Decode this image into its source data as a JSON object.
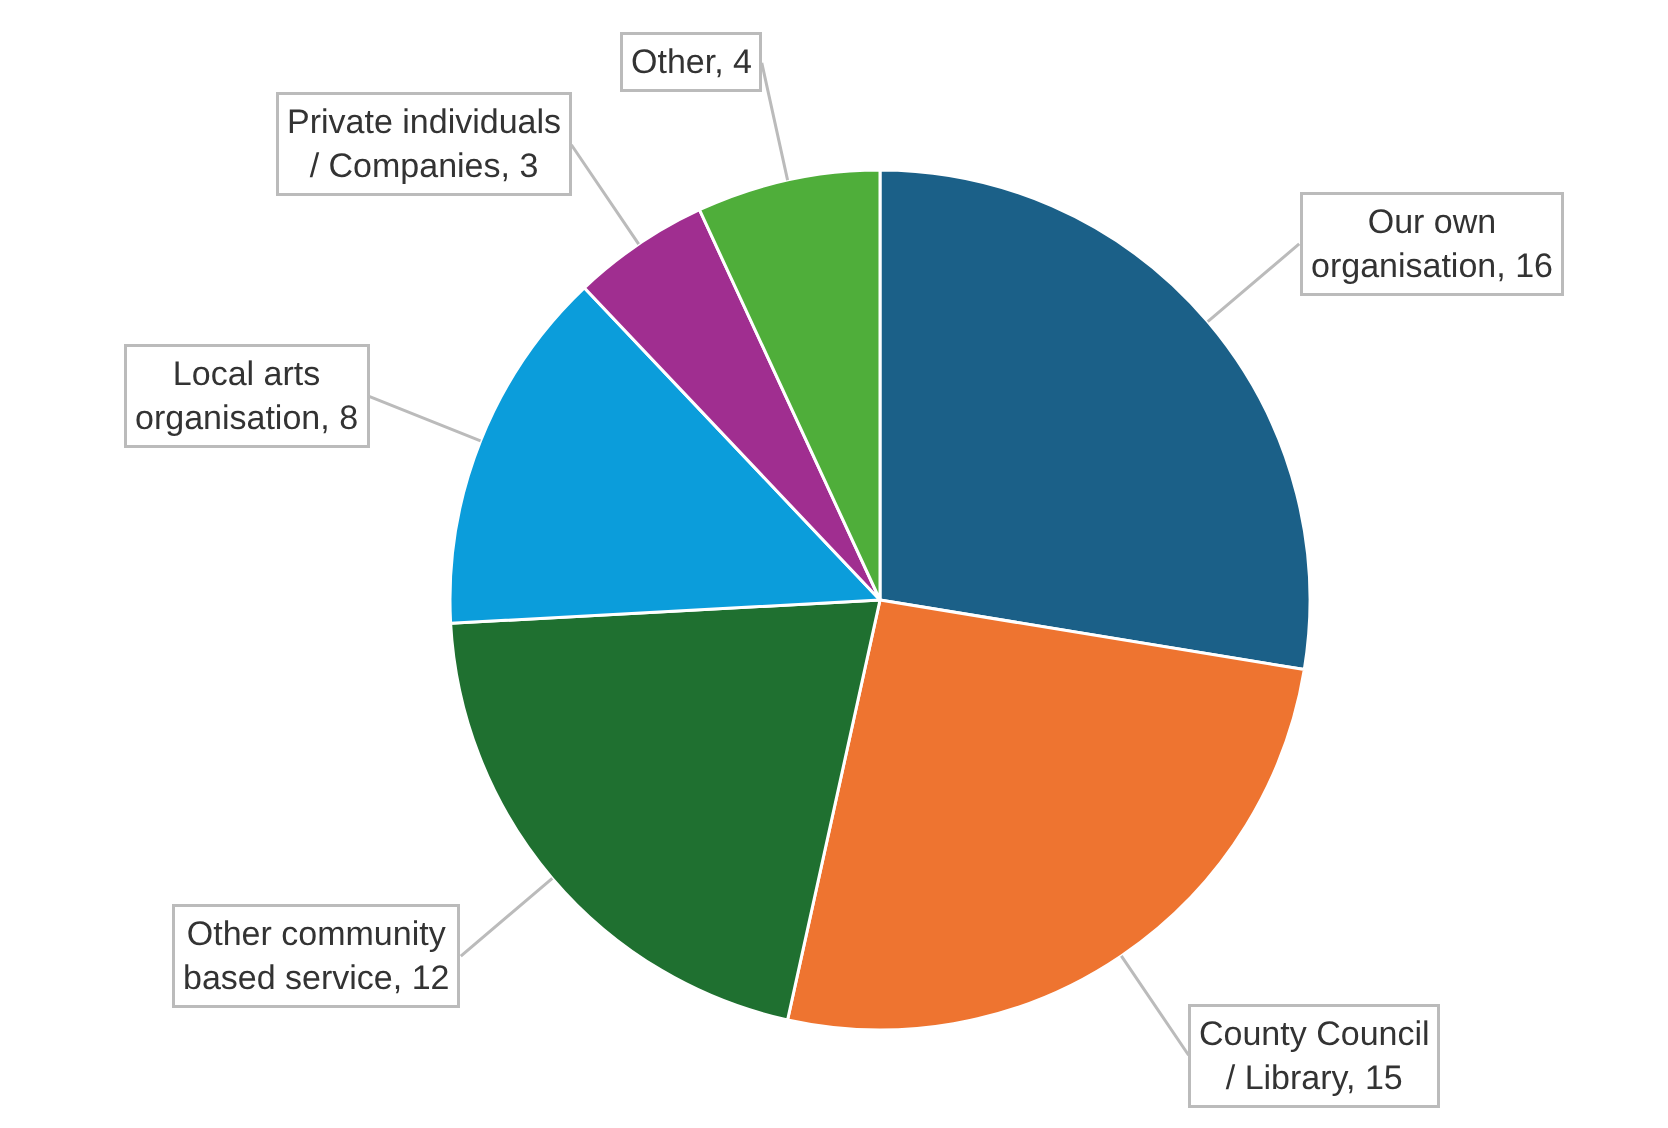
{
  "chart_data": {
    "type": "pie",
    "categories": [
      "Our own organisation, 16",
      "County Council / Library, 15",
      "Other community based service, 12",
      "Local arts organisation, 8",
      "Private individuals / Companies, 3",
      "Other, 4"
    ],
    "values": [
      16,
      15,
      12,
      8,
      3,
      4
    ],
    "colors": [
      "#1b6088",
      "#ee7430",
      "#1f7030",
      "#0b9ddb",
      "#a02e90",
      "#4fae3a"
    ],
    "legend": false
  }
}
